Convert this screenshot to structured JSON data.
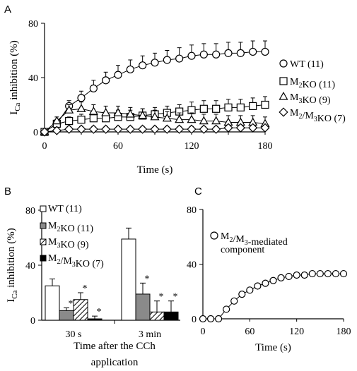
{
  "chart_data": [
    {
      "panel": "A",
      "type": "line",
      "xlabel": "Time (s)",
      "ylabel": {
        "main": "I",
        "sub": "Ca",
        "rest": " inhibition (%)"
      },
      "xlim": [
        0,
        180
      ],
      "ylim": [
        0,
        80
      ],
      "xticks": [
        0,
        60,
        120,
        180
      ],
      "yticks": [
        0,
        40,
        80
      ],
      "legend_position": "right",
      "series": [
        {
          "name": "WT (11)",
          "legend_main": "WT (11)",
          "marker": "circle",
          "x": [
            0,
            10,
            20,
            30,
            40,
            50,
            60,
            70,
            80,
            90,
            100,
            110,
            120,
            130,
            140,
            150,
            160,
            170,
            180
          ],
          "y": [
            0,
            6,
            19,
            25,
            32,
            38,
            42,
            46,
            49,
            51,
            53,
            54,
            56,
            57,
            57,
            58,
            58,
            59,
            59
          ],
          "err": [
            0,
            3,
            4,
            5,
            6,
            6,
            7,
            7,
            7,
            7,
            7,
            8,
            8,
            8,
            8,
            8,
            8,
            8,
            8
          ]
        },
        {
          "name": "M2KO (11)",
          "legend_main": "M",
          "legend_sub": "2",
          "legend_rest": "KO (11)",
          "marker": "square",
          "x": [
            0,
            10,
            20,
            30,
            40,
            50,
            60,
            70,
            80,
            90,
            100,
            110,
            120,
            130,
            140,
            150,
            160,
            170,
            180
          ],
          "y": [
            0,
            6,
            8,
            9,
            10,
            10,
            11,
            11,
            12,
            13,
            14,
            15,
            16,
            17,
            17,
            18,
            18,
            19,
            20
          ],
          "err": [
            0,
            3,
            3,
            4,
            4,
            5,
            5,
            5,
            5,
            5,
            5,
            5,
            6,
            6,
            6,
            6,
            6,
            6,
            6
          ]
        },
        {
          "name": "M3KO (9)",
          "legend_main": "M",
          "legend_sub": "3",
          "legend_rest": "KO (9)",
          "marker": "triangle",
          "x": [
            0,
            10,
            20,
            30,
            40,
            50,
            60,
            70,
            80,
            90,
            100,
            110,
            120,
            130,
            140,
            150,
            160,
            170,
            180
          ],
          "y": [
            0,
            8,
            16,
            17,
            15,
            14,
            14,
            13,
            12,
            11,
            10,
            9,
            9,
            8,
            8,
            7,
            7,
            7,
            6
          ],
          "err": [
            0,
            3,
            4,
            5,
            5,
            5,
            5,
            5,
            5,
            5,
            5,
            5,
            5,
            5,
            5,
            5,
            5,
            5,
            5
          ]
        },
        {
          "name": "M2/M3KO (7)",
          "legend_main": "M",
          "legend_sub": "2",
          "legend_mid": "/M",
          "legend_sub2": "3",
          "legend_rest": "KO (7)",
          "marker": "diamond",
          "x": [
            0,
            10,
            20,
            30,
            40,
            50,
            60,
            70,
            80,
            90,
            100,
            110,
            120,
            130,
            140,
            150,
            160,
            170,
            180
          ],
          "y": [
            0,
            1,
            2,
            2,
            2,
            2,
            2,
            2,
            2,
            2,
            2,
            2,
            2,
            2,
            2,
            3,
            3,
            3,
            3
          ],
          "err": [
            0,
            2,
            2,
            2,
            2,
            2,
            2,
            2,
            2,
            2,
            2,
            2,
            2,
            2,
            2,
            2,
            2,
            2,
            2
          ]
        }
      ]
    },
    {
      "panel": "B",
      "type": "bar",
      "xlabel_line1": "Time after the CCh",
      "xlabel_line2": "application",
      "ylabel": {
        "main": "I",
        "sub": "Ca",
        "rest": " inhibition (%)"
      },
      "ylim": [
        0,
        80
      ],
      "yticks": [
        0,
        40,
        80
      ],
      "categories": [
        "30 s",
        "3 min"
      ],
      "legend_position": "top-left",
      "series": [
        {
          "name": "WT (11)",
          "legend_main": "WT (11)",
          "fill": "white",
          "values": [
            25,
            59
          ],
          "err": [
            5,
            8
          ],
          "sig": [
            "",
            ""
          ]
        },
        {
          "name": "M2KO (11)",
          "legend_main": "M",
          "legend_sub": "2",
          "legend_rest": "KO (11)",
          "fill": "gray",
          "values": [
            7,
            19
          ],
          "err": [
            2,
            8
          ],
          "sig": [
            "*",
            "*"
          ]
        },
        {
          "name": "M3KO (9)",
          "legend_main": "M",
          "legend_sub": "3",
          "legend_rest": "KO (9)",
          "fill": "hatch",
          "values": [
            15,
            6
          ],
          "err": [
            5,
            8
          ],
          "sig": [
            "*",
            "*"
          ]
        },
        {
          "name": "M2/M3KO (7)",
          "legend_main": "M",
          "legend_sub": "2",
          "legend_mid": "/M",
          "legend_sub2": "3",
          "legend_rest": "KO (7)",
          "fill": "black",
          "values": [
            1,
            6
          ],
          "err": [
            2,
            8
          ],
          "sig": [
            "*",
            "*"
          ]
        }
      ]
    },
    {
      "panel": "C",
      "type": "line",
      "xlabel": "Time (s)",
      "ylabel": "",
      "xlim": [
        0,
        180
      ],
      "ylim": [
        0,
        80
      ],
      "xticks": [
        0,
        60,
        120,
        180
      ],
      "yticks": [
        0,
        40,
        80
      ],
      "legend_position": "top-left",
      "series": [
        {
          "name": "M2/M3-mediated component",
          "legend_main": "M",
          "legend_sub": "2",
          "legend_mid": "/M",
          "legend_sub2": "3",
          "legend_rest": "-mediated",
          "legend_line2": "component",
          "marker": "circle",
          "x": [
            0,
            10,
            20,
            30,
            40,
            50,
            60,
            70,
            80,
            90,
            100,
            110,
            120,
            130,
            140,
            150,
            160,
            170,
            180
          ],
          "y": [
            0,
            0,
            0,
            7,
            13,
            18,
            21,
            24,
            26,
            28,
            30,
            31,
            32,
            32,
            33,
            33,
            33,
            33,
            33
          ]
        }
      ]
    }
  ]
}
